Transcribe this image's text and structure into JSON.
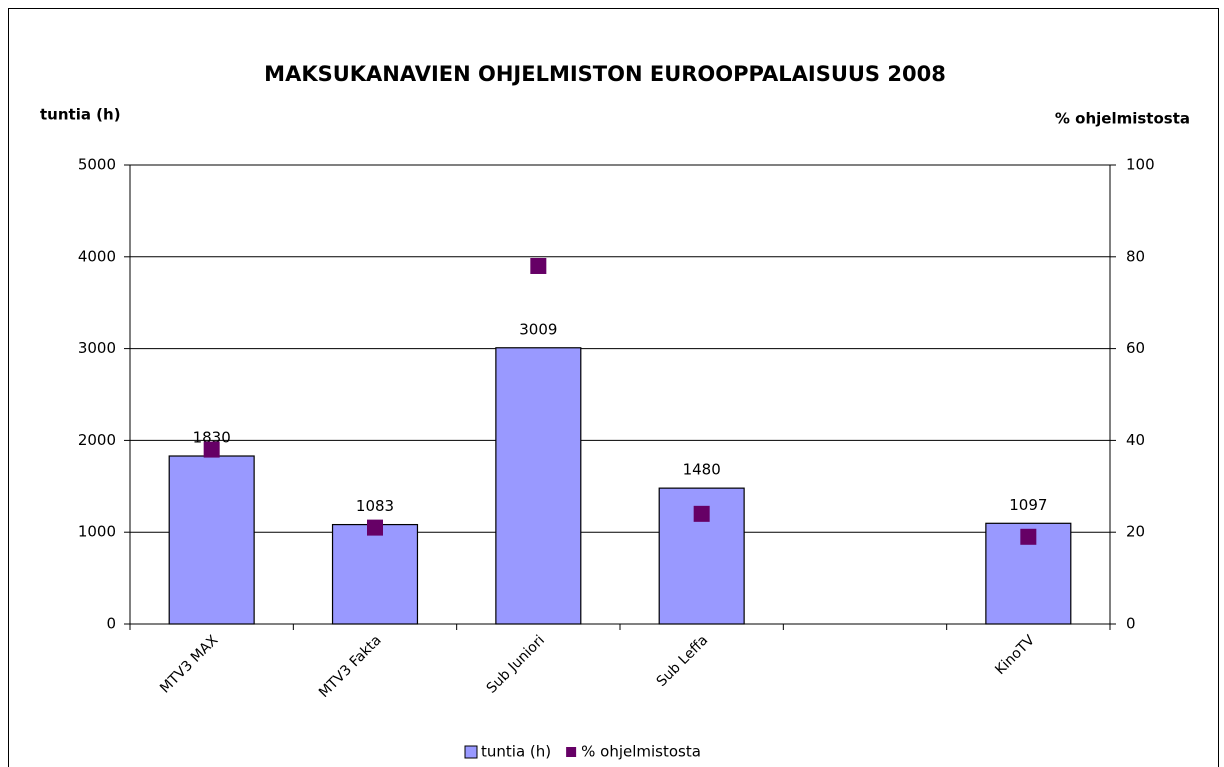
{
  "chart_data": {
    "type": "bar",
    "title": "MAKSUKANAVIEN  OHJELMISTON EUROOPPALAISUUS 2008",
    "y_label": "tuntia (h)",
    "y2_label": "% ohjelmistosta",
    "categories": [
      "MTV3 MAX",
      "MTV3 Fakta",
      "Sub Juniori",
      "Sub Leffa",
      null,
      "KinoTV"
    ],
    "series": [
      {
        "name": "tuntia (h)",
        "type": "bar",
        "color": "#9999ff",
        "values": [
          1830,
          1083,
          3009,
          1480,
          null,
          1097
        ]
      },
      {
        "name": "% ohjelmistosta",
        "type": "scatter",
        "marker": "square",
        "axis": "y2",
        "color": "#660066",
        "values": [
          38,
          21,
          78,
          24,
          null,
          19
        ]
      }
    ],
    "ylim": [
      0,
      5000
    ],
    "yticks": [
      0,
      1000,
      2000,
      3000,
      4000,
      5000
    ],
    "y2lim": [
      0,
      100
    ],
    "y2ticks": [
      0,
      20,
      40,
      60,
      80,
      100
    ],
    "grid": true,
    "data_labels": true,
    "legend": "bottom"
  }
}
